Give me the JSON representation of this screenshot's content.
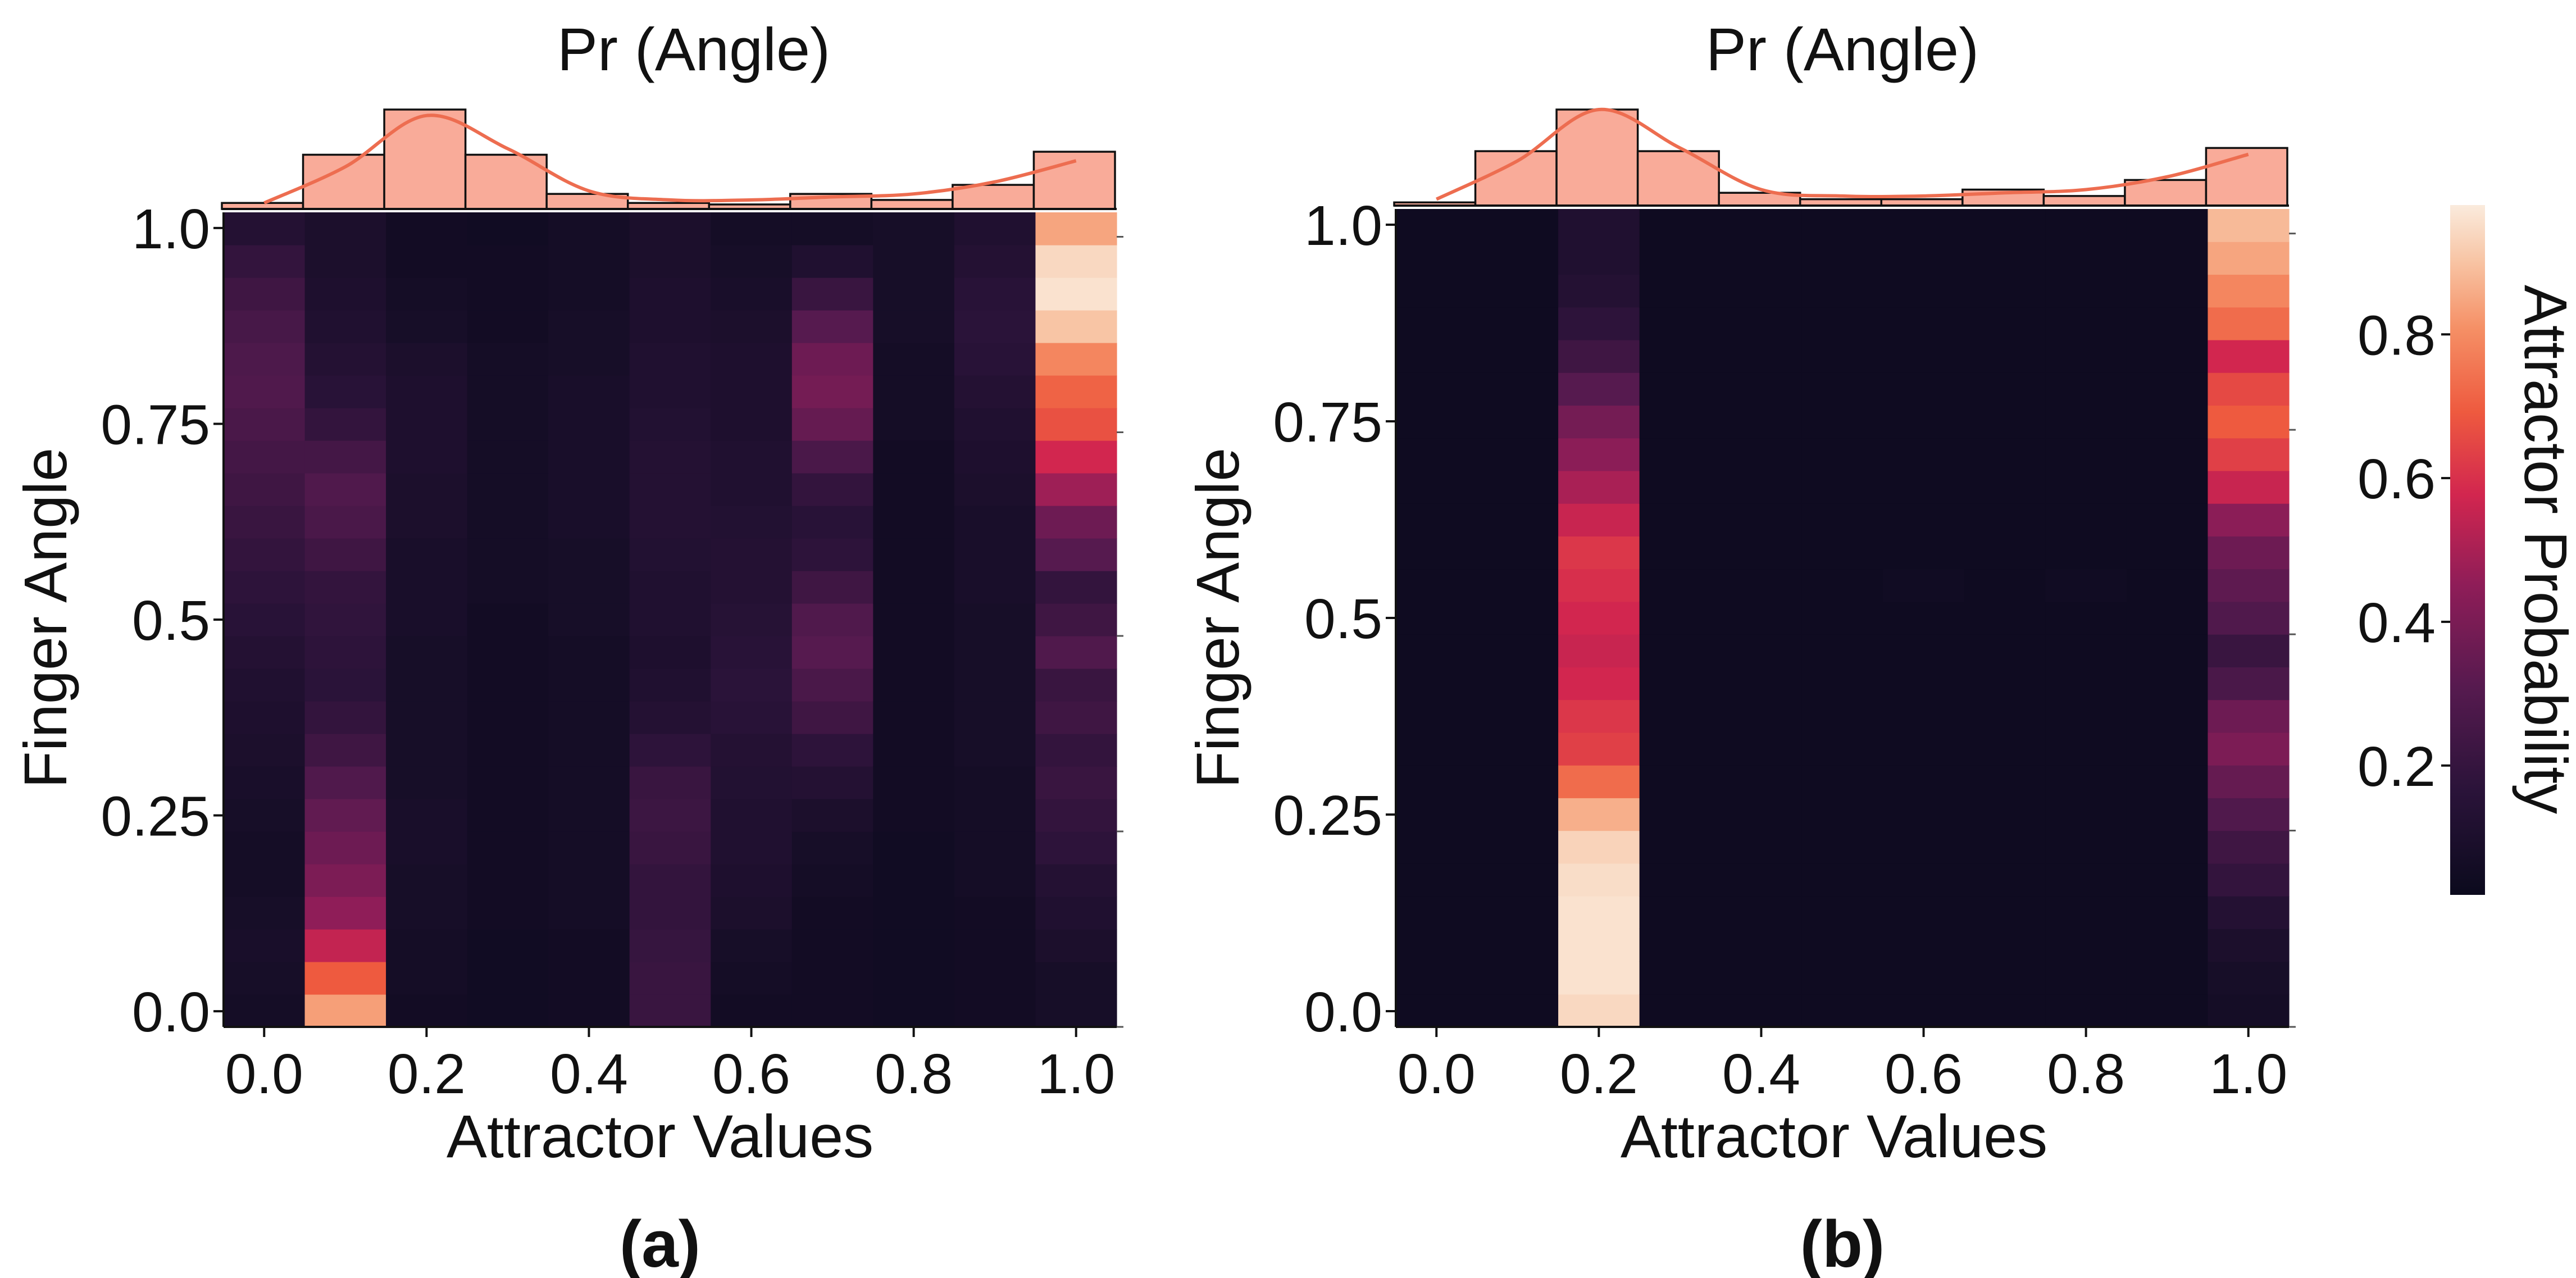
{
  "chart_data": [
    {
      "panel": "(a)",
      "type": "heatmap",
      "title": "Pr (Angle)",
      "xlabel": "Attractor Values",
      "ylabel": "Finger Angle",
      "x_ticks": [
        "0.0",
        "0.2",
        "0.4",
        "0.6",
        "0.8",
        "1.0"
      ],
      "y_ticks": [
        "1.0",
        "0.75",
        "0.5",
        "0.25",
        "0.0"
      ],
      "x_range": [
        -0.05,
        1.05
      ],
      "y_range": [
        -0.02,
        1.02
      ],
      "columns": [
        0.0,
        0.1,
        0.2,
        0.3,
        0.4,
        0.5,
        0.6,
        0.7,
        0.8,
        0.9,
        1.0
      ],
      "histogram_top": {
        "values": [
          0.02,
          0.18,
          0.33,
          0.18,
          0.05,
          0.02,
          0.015,
          0.05,
          0.03,
          0.08,
          0.19
        ],
        "kde": [
          0.02,
          0.14,
          0.31,
          0.2,
          0.06,
          0.03,
          0.03,
          0.04,
          0.05,
          0.09,
          0.16
        ]
      },
      "cells": [
        [
          0.05,
          0.06,
          0.07,
          0.06,
          0.05,
          0.05,
          0.06,
          0.07,
          0.08,
          0.09,
          0.1,
          0.12,
          0.14,
          0.16,
          0.18,
          0.2,
          0.22,
          0.24,
          0.26,
          0.28,
          0.27,
          0.25,
          0.22,
          0.18,
          0.12
        ],
        [
          0.85,
          0.7,
          0.55,
          0.45,
          0.4,
          0.36,
          0.33,
          0.28,
          0.22,
          0.18,
          0.15,
          0.16,
          0.17,
          0.18,
          0.22,
          0.26,
          0.28,
          0.24,
          0.18,
          0.14,
          0.12,
          0.1,
          0.09,
          0.08,
          0.08
        ],
        [
          0.04,
          0.05,
          0.05,
          0.06,
          0.06,
          0.07,
          0.07,
          0.06,
          0.06,
          0.06,
          0.06,
          0.06,
          0.07,
          0.07,
          0.07,
          0.08,
          0.08,
          0.09,
          0.09,
          0.09,
          0.08,
          0.06,
          0.05,
          0.04,
          0.04
        ],
        [
          0.03,
          0.03,
          0.03,
          0.04,
          0.04,
          0.04,
          0.04,
          0.04,
          0.04,
          0.04,
          0.04,
          0.04,
          0.04,
          0.05,
          0.05,
          0.05,
          0.05,
          0.05,
          0.05,
          0.05,
          0.05,
          0.04,
          0.04,
          0.04,
          0.03
        ],
        [
          0.04,
          0.04,
          0.04,
          0.05,
          0.05,
          0.05,
          0.05,
          0.05,
          0.05,
          0.05,
          0.05,
          0.05,
          0.06,
          0.06,
          0.06,
          0.07,
          0.07,
          0.07,
          0.07,
          0.07,
          0.06,
          0.06,
          0.05,
          0.05,
          0.05
        ],
        [
          0.2,
          0.2,
          0.19,
          0.18,
          0.18,
          0.2,
          0.21,
          0.2,
          0.16,
          0.12,
          0.1,
          0.09,
          0.1,
          0.1,
          0.11,
          0.12,
          0.12,
          0.12,
          0.11,
          0.1,
          0.1,
          0.09,
          0.09,
          0.08,
          0.08
        ],
        [
          0.04,
          0.05,
          0.06,
          0.08,
          0.09,
          0.1,
          0.1,
          0.11,
          0.12,
          0.14,
          0.15,
          0.14,
          0.13,
          0.12,
          0.12,
          0.11,
          0.1,
          0.1,
          0.09,
          0.09,
          0.09,
          0.08,
          0.07,
          0.06,
          0.05
        ],
        [
          0.04,
          0.04,
          0.04,
          0.04,
          0.05,
          0.06,
          0.08,
          0.12,
          0.16,
          0.22,
          0.26,
          0.3,
          0.28,
          0.22,
          0.16,
          0.14,
          0.18,
          0.26,
          0.34,
          0.38,
          0.36,
          0.3,
          0.2,
          0.1,
          0.05
        ],
        [
          0.03,
          0.03,
          0.03,
          0.03,
          0.03,
          0.03,
          0.04,
          0.04,
          0.04,
          0.04,
          0.04,
          0.04,
          0.04,
          0.04,
          0.04,
          0.04,
          0.04,
          0.04,
          0.05,
          0.05,
          0.05,
          0.06,
          0.06,
          0.06,
          0.06
        ],
        [
          0.04,
          0.04,
          0.04,
          0.04,
          0.05,
          0.05,
          0.05,
          0.05,
          0.06,
          0.06,
          0.06,
          0.06,
          0.06,
          0.07,
          0.07,
          0.07,
          0.08,
          0.09,
          0.1,
          0.12,
          0.14,
          0.15,
          0.14,
          0.12,
          0.1
        ],
        [
          0.06,
          0.06,
          0.08,
          0.1,
          0.12,
          0.16,
          0.18,
          0.2,
          0.18,
          0.22,
          0.2,
          0.28,
          0.22,
          0.18,
          0.3,
          0.36,
          0.48,
          0.58,
          0.68,
          0.72,
          0.8,
          0.92,
          0.98,
          0.96,
          0.86
        ]
      ]
    },
    {
      "panel": "(b)",
      "type": "heatmap",
      "title": "Pr (Angle)",
      "xlabel": "Attractor Values",
      "ylabel": "Finger Angle",
      "x_ticks": [
        "0.0",
        "0.2",
        "0.4",
        "0.6",
        "0.8",
        "1.0"
      ],
      "y_ticks": [
        "1.0",
        "0.75",
        "0.5",
        "0.25",
        "0.0"
      ],
      "x_range": [
        -0.05,
        1.05
      ],
      "y_range": [
        -0.02,
        1.02
      ],
      "columns": [
        0.0,
        0.1,
        0.2,
        0.3,
        0.4,
        0.5,
        0.6,
        0.7,
        0.8,
        0.9,
        1.0
      ],
      "histogram_top": {
        "values": [
          0.01,
          0.17,
          0.3,
          0.17,
          0.04,
          0.02,
          0.02,
          0.05,
          0.03,
          0.08,
          0.18
        ],
        "kde": [
          0.02,
          0.14,
          0.3,
          0.18,
          0.05,
          0.03,
          0.03,
          0.04,
          0.05,
          0.09,
          0.16
        ]
      },
      "cells": [
        [
          0.02,
          0.02,
          0.02,
          0.02,
          0.02,
          0.02,
          0.02,
          0.02,
          0.02,
          0.02,
          0.02,
          0.02,
          0.02,
          0.02,
          0.02,
          0.02,
          0.02,
          0.02,
          0.02,
          0.02,
          0.02,
          0.02,
          0.02,
          0.02,
          0.02
        ],
        [
          0.02,
          0.02,
          0.02,
          0.02,
          0.02,
          0.02,
          0.02,
          0.02,
          0.02,
          0.02,
          0.02,
          0.02,
          0.02,
          0.02,
          0.02,
          0.02,
          0.02,
          0.02,
          0.02,
          0.02,
          0.02,
          0.02,
          0.02,
          0.02,
          0.02
        ],
        [
          0.96,
          0.98,
          0.98,
          0.98,
          0.97,
          0.95,
          0.88,
          0.74,
          0.64,
          0.62,
          0.58,
          0.56,
          0.58,
          0.6,
          0.62,
          0.56,
          0.5,
          0.44,
          0.38,
          0.3,
          0.22,
          0.16,
          0.12,
          0.1,
          0.1
        ],
        [
          0.02,
          0.02,
          0.02,
          0.02,
          0.02,
          0.02,
          0.02,
          0.02,
          0.02,
          0.02,
          0.02,
          0.02,
          0.02,
          0.02,
          0.02,
          0.02,
          0.02,
          0.02,
          0.02,
          0.02,
          0.02,
          0.02,
          0.02,
          0.02,
          0.02
        ],
        [
          0.02,
          0.02,
          0.02,
          0.02,
          0.02,
          0.02,
          0.02,
          0.02,
          0.02,
          0.02,
          0.02,
          0.02,
          0.02,
          0.02,
          0.02,
          0.02,
          0.02,
          0.02,
          0.02,
          0.02,
          0.02,
          0.02,
          0.02,
          0.02,
          0.02
        ],
        [
          0.02,
          0.02,
          0.02,
          0.02,
          0.02,
          0.02,
          0.02,
          0.02,
          0.02,
          0.02,
          0.02,
          0.02,
          0.02,
          0.02,
          0.02,
          0.02,
          0.02,
          0.02,
          0.02,
          0.02,
          0.02,
          0.02,
          0.02,
          0.02,
          0.02
        ],
        [
          0.02,
          0.02,
          0.02,
          0.02,
          0.02,
          0.02,
          0.02,
          0.02,
          0.02,
          0.02,
          0.02,
          0.02,
          0.02,
          0.03,
          0.02,
          0.02,
          0.02,
          0.02,
          0.02,
          0.02,
          0.02,
          0.02,
          0.02,
          0.02,
          0.02
        ],
        [
          0.02,
          0.02,
          0.02,
          0.02,
          0.02,
          0.02,
          0.02,
          0.02,
          0.02,
          0.02,
          0.02,
          0.02,
          0.02,
          0.02,
          0.02,
          0.02,
          0.02,
          0.02,
          0.02,
          0.02,
          0.02,
          0.02,
          0.02,
          0.02,
          0.02
        ],
        [
          0.02,
          0.02,
          0.02,
          0.02,
          0.02,
          0.02,
          0.02,
          0.02,
          0.02,
          0.02,
          0.02,
          0.02,
          0.02,
          0.03,
          0.02,
          0.02,
          0.02,
          0.02,
          0.02,
          0.02,
          0.02,
          0.02,
          0.02,
          0.02,
          0.02
        ],
        [
          0.02,
          0.02,
          0.02,
          0.02,
          0.02,
          0.02,
          0.02,
          0.02,
          0.02,
          0.02,
          0.02,
          0.02,
          0.02,
          0.02,
          0.02,
          0.02,
          0.02,
          0.02,
          0.02,
          0.02,
          0.02,
          0.02,
          0.02,
          0.02,
          0.02
        ],
        [
          0.05,
          0.06,
          0.08,
          0.12,
          0.18,
          0.22,
          0.28,
          0.34,
          0.4,
          0.36,
          0.26,
          0.2,
          0.28,
          0.32,
          0.36,
          0.44,
          0.56,
          0.64,
          0.7,
          0.66,
          0.58,
          0.74,
          0.8,
          0.86,
          0.9
        ]
      ]
    }
  ],
  "colorbar": {
    "label": "Attractor Probability",
    "ticks": [
      "0.8",
      "0.6",
      "0.4",
      "0.2"
    ],
    "tick_values": [
      0.8,
      0.6,
      0.4,
      0.2
    ],
    "range": [
      0.02,
      0.98
    ]
  },
  "colors": {
    "hist_fill": "#f9ab99",
    "kde_line": "#ed6d50"
  }
}
